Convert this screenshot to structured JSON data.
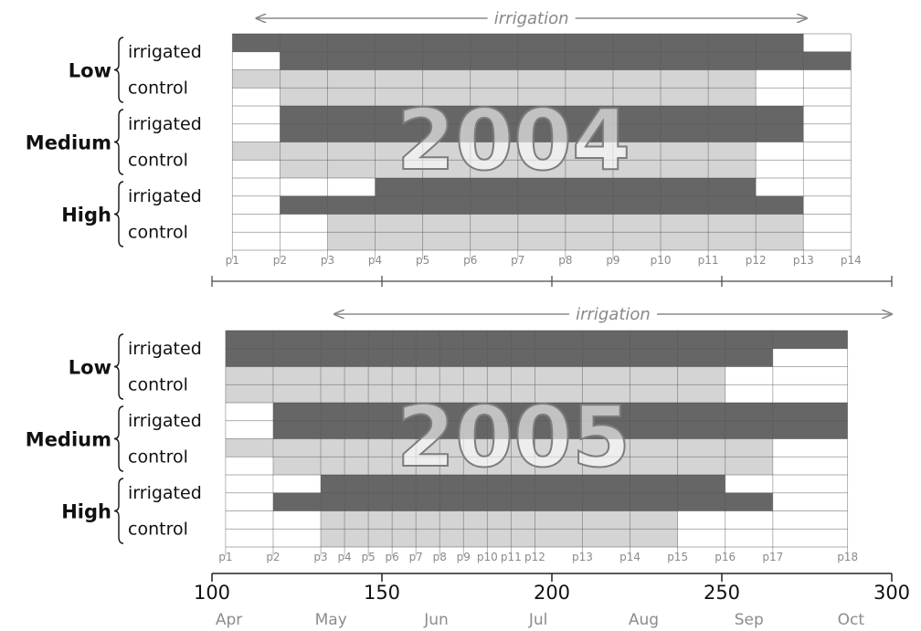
{
  "chart_data": {
    "type": "timeline",
    "x_axis": {
      "range": [
        100,
        300
      ],
      "ticks": [
        100,
        150,
        200,
        250,
        300
      ],
      "tick_labels": [
        "100",
        "150",
        "200",
        "250",
        "300"
      ],
      "months": [
        {
          "label": "Apr",
          "x": 105
        },
        {
          "label": "May",
          "x": 135
        },
        {
          "label": "Jun",
          "x": 166
        },
        {
          "label": "Jul",
          "x": 196
        },
        {
          "label": "Aug",
          "x": 227
        },
        {
          "label": "Sep",
          "x": 258
        },
        {
          "label": "Oct",
          "x": 288
        }
      ]
    },
    "colors": {
      "irrigated": "#666666",
      "control": "#d4d4d4"
    },
    "panels": [
      {
        "year": "2004",
        "irrigation_label": "irrigation",
        "irrigation_span": [
          113,
          275
        ],
        "periods": [
          {
            "label": "p1",
            "x": 106
          },
          {
            "label": "p2",
            "x": 120
          },
          {
            "label": "p3",
            "x": 134
          },
          {
            "label": "p4",
            "x": 148
          },
          {
            "label": "p5",
            "x": 162
          },
          {
            "label": "p6",
            "x": 176
          },
          {
            "label": "p7",
            "x": 190
          },
          {
            "label": "p8",
            "x": 204
          },
          {
            "label": "p9",
            "x": 218
          },
          {
            "label": "p10",
            "x": 232
          },
          {
            "label": "p11",
            "x": 246
          },
          {
            "label": "p12",
            "x": 260
          },
          {
            "label": "p13",
            "x": 274
          },
          {
            "label": "p14",
            "x": 288
          }
        ],
        "groups": [
          {
            "name": "Low",
            "rows": [
              {
                "label": "irrigated",
                "treatment": "irrigated",
                "bars": [
                  [
                    106,
                    274
                  ],
                  [
                    120,
                    288
                  ]
                ]
              },
              {
                "label": "control",
                "treatment": "control",
                "bars": [
                  [
                    106,
                    260
                  ],
                  [
                    120,
                    260
                  ]
                ]
              }
            ]
          },
          {
            "name": "Medium",
            "rows": [
              {
                "label": "irrigated",
                "treatment": "irrigated",
                "bars": [
                  [
                    120,
                    274
                  ],
                  [
                    120,
                    274
                  ]
                ]
              },
              {
                "label": "control",
                "treatment": "control",
                "bars": [
                  [
                    106,
                    260
                  ],
                  [
                    120,
                    260
                  ]
                ]
              }
            ]
          },
          {
            "name": "High",
            "rows": [
              {
                "label": "irrigated",
                "treatment": "irrigated",
                "bars": [
                  [
                    148,
                    260
                  ],
                  [
                    120,
                    274
                  ]
                ]
              },
              {
                "label": "control",
                "treatment": "control",
                "bars": [
                  [
                    134,
                    274
                  ],
                  [
                    134,
                    274
                  ]
                ]
              }
            ]
          }
        ]
      },
      {
        "year": "2005",
        "irrigation_label": "irrigation",
        "irrigation_span": [
          136,
          300
        ],
        "periods": [
          {
            "label": "p1",
            "x": 104
          },
          {
            "label": "p2",
            "x": 118
          },
          {
            "label": "p3",
            "x": 132
          },
          {
            "label": "p4",
            "x": 139
          },
          {
            "label": "p5",
            "x": 146
          },
          {
            "label": "p6",
            "x": 153
          },
          {
            "label": "p7",
            "x": 160
          },
          {
            "label": "p8",
            "x": 167
          },
          {
            "label": "p9",
            "x": 174
          },
          {
            "label": "p10",
            "x": 181
          },
          {
            "label": "p11",
            "x": 188
          },
          {
            "label": "p12",
            "x": 195
          },
          {
            "label": "p13",
            "x": 209
          },
          {
            "label": "p14",
            "x": 223
          },
          {
            "label": "p15",
            "x": 237
          },
          {
            "label": "p16",
            "x": 251
          },
          {
            "label": "p17",
            "x": 265
          },
          {
            "label": "p18",
            "x": 287
          }
        ],
        "groups": [
          {
            "name": "Low",
            "rows": [
              {
                "label": "irrigated",
                "treatment": "irrigated",
                "bars": [
                  [
                    104,
                    287
                  ],
                  [
                    104,
                    265
                  ]
                ]
              },
              {
                "label": "control",
                "treatment": "control",
                "bars": [
                  [
                    104,
                    251
                  ],
                  [
                    104,
                    251
                  ]
                ]
              }
            ]
          },
          {
            "name": "Medium",
            "rows": [
              {
                "label": "irrigated",
                "treatment": "irrigated",
                "bars": [
                  [
                    118,
                    287
                  ],
                  [
                    118,
                    287
                  ]
                ]
              },
              {
                "label": "control",
                "treatment": "control",
                "bars": [
                  [
                    104,
                    265
                  ],
                  [
                    118,
                    265
                  ]
                ]
              }
            ]
          },
          {
            "name": "High",
            "rows": [
              {
                "label": "irrigated",
                "treatment": "irrigated",
                "bars": [
                  [
                    132,
                    251
                  ],
                  [
                    118,
                    265
                  ]
                ]
              },
              {
                "label": "control",
                "treatment": "control",
                "bars": [
                  [
                    132,
                    237
                  ],
                  [
                    132,
                    237
                  ]
                ]
              }
            ]
          }
        ]
      }
    ]
  }
}
